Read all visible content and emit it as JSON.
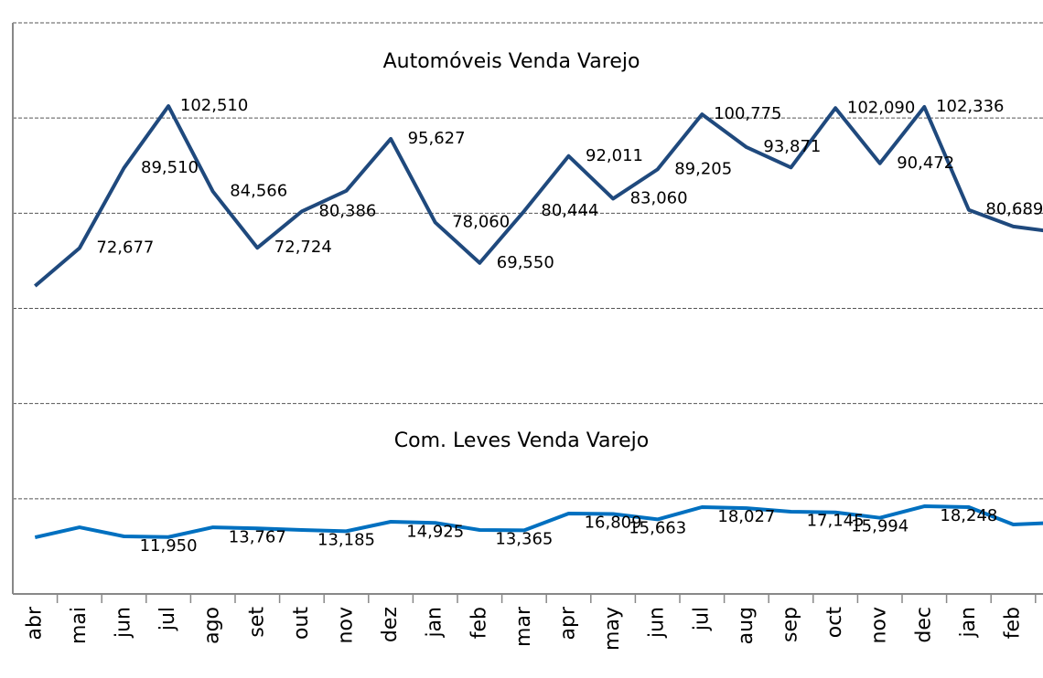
{
  "chart_data": {
    "type": "line",
    "categories": [
      "abr",
      "mai",
      "jun",
      "jul",
      "ago",
      "set",
      "out",
      "nov",
      "dez",
      "jan",
      "feb",
      "mar",
      "apr",
      "may",
      "jun",
      "jul",
      "aug",
      "sep",
      "oct",
      "nov",
      "dec",
      "jan",
      "feb",
      null
    ],
    "series": [
      {
        "name": "Automóveis Venda Varejo",
        "color": "#1f497d",
        "values": [
          64700,
          72677,
          89510,
          102510,
          84566,
          72724,
          80386,
          84700,
          95627,
          78060,
          69550,
          80444,
          92011,
          83060,
          89205,
          100775,
          93871,
          89600,
          102090,
          90472,
          102336,
          80689,
          77200,
          76000
        ],
        "value_labels": [
          null,
          "72,677",
          "89,510",
          "102,510",
          "84,566",
          "72,724",
          "80,386",
          null,
          "95,627",
          "78,060",
          "69,550",
          "80,444",
          "92,011",
          "83,060",
          "89,205",
          "100,775",
          "93,871",
          null,
          "102,090",
          "90,472",
          "102,336",
          "80,689",
          null,
          null
        ]
      },
      {
        "name": "Com. Leves Venda Varejo",
        "color": "#0070c0",
        "values": [
          11900,
          14000,
          12100,
          11950,
          14000,
          13767,
          13440,
          13185,
          15170,
          14925,
          13440,
          13365,
          16900,
          16809,
          15663,
          18240,
          18027,
          17280,
          17145,
          15994,
          18430,
          18248,
          14590,
          14980
        ],
        "value_labels": [
          null,
          null,
          null,
          "11,950",
          null,
          "13,767",
          null,
          "13,185",
          null,
          "14,925",
          null,
          "13,365",
          null,
          "16,809",
          "15,663",
          null,
          "18,027",
          null,
          "17,145",
          "15,994",
          null,
          "18,248",
          null,
          null
        ]
      }
    ],
    "ylim": [
      0,
      120000
    ],
    "yticks": [
      0,
      20000,
      40000,
      60000,
      80000,
      100000,
      120000
    ],
    "grid": true
  }
}
